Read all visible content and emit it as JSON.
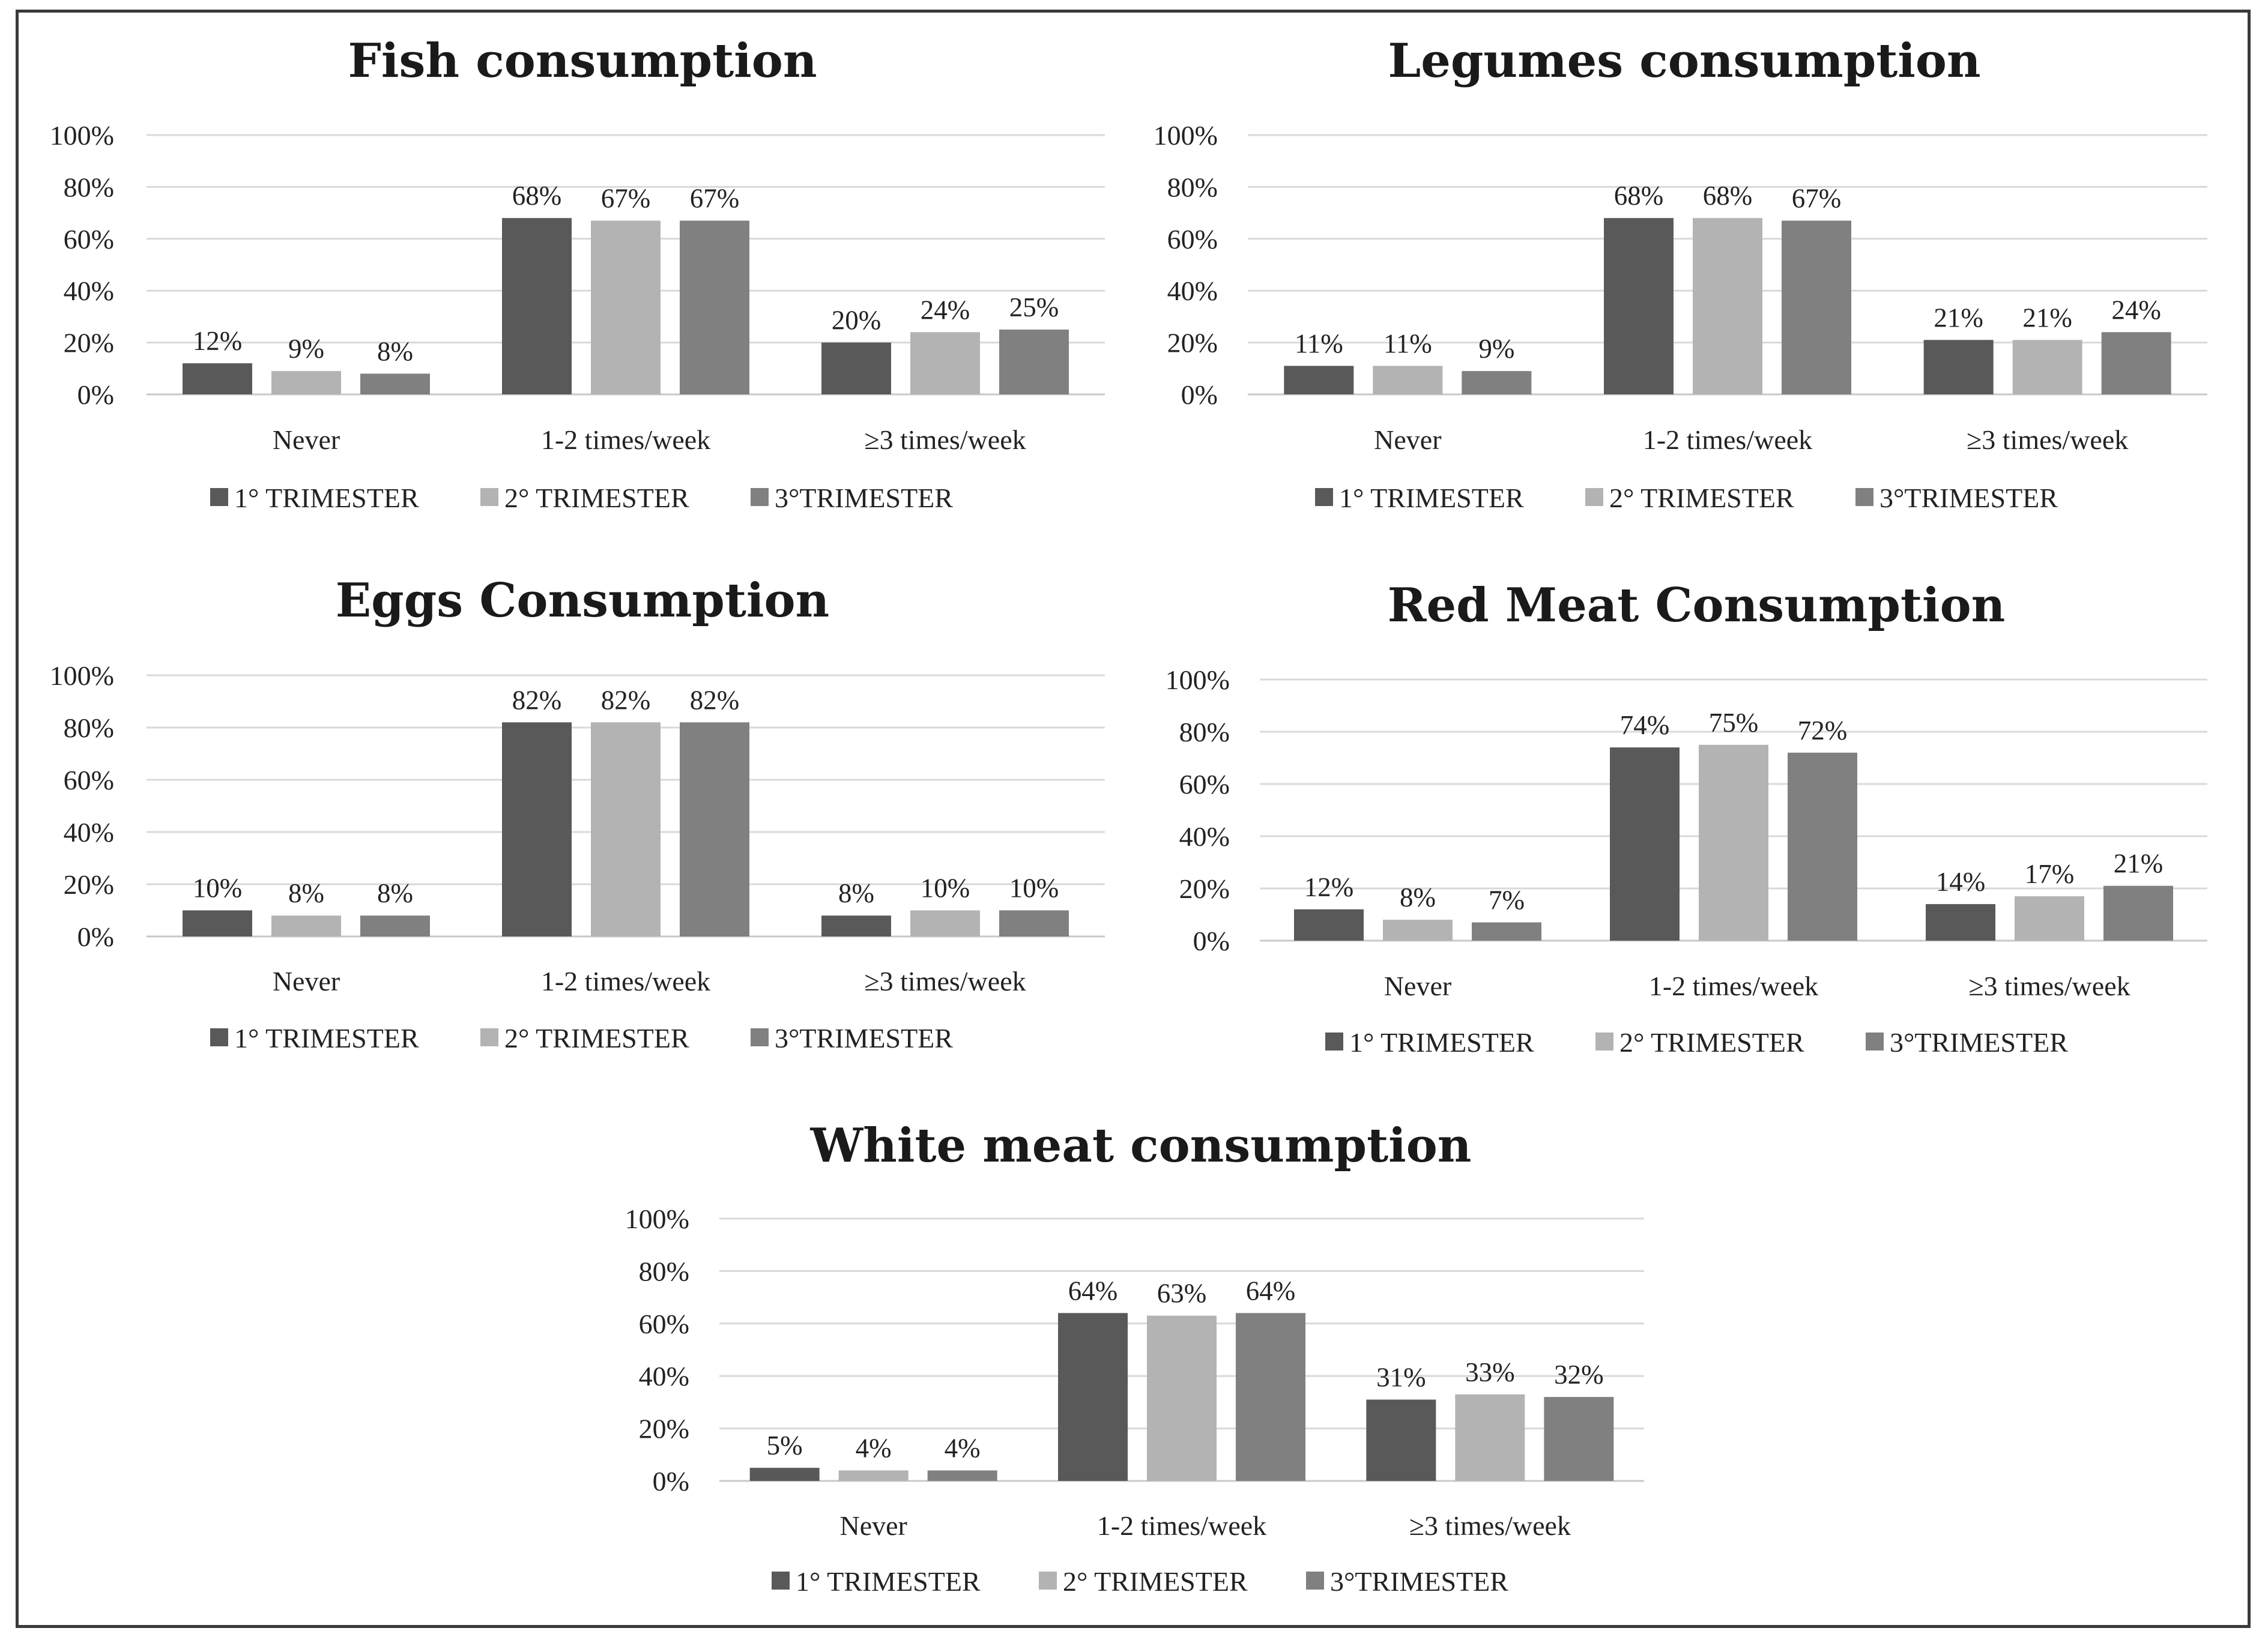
{
  "colors": {
    "series": [
      "#595959",
      "#b3b3b3",
      "#808080"
    ],
    "frame": "#3a3a3a",
    "grid": "#d9d9d9",
    "text": "#222222"
  },
  "chart_data": [
    {
      "id": "fish",
      "type": "bar",
      "title": "Fish consumption",
      "categories": [
        "Never",
        "1-2 times/week",
        "≥3 times/week"
      ],
      "series": [
        {
          "name": "1° TRIMESTER",
          "values": [
            12,
            68,
            20
          ]
        },
        {
          "name": "2° TRIMESTER",
          "values": [
            9,
            67,
            24
          ]
        },
        {
          "name": "3°TRIMESTER",
          "values": [
            8,
            67,
            25
          ]
        }
      ],
      "y_ticks": [
        "0%",
        "20%",
        "40%",
        "60%",
        "80%",
        "100%"
      ],
      "ylim": [
        0,
        100
      ],
      "value_suffix": "%",
      "grid": true,
      "legend": "bottom"
    },
    {
      "id": "legumes",
      "type": "bar",
      "title": "Legumes consumption",
      "categories": [
        "Never",
        "1-2 times/week",
        "≥3 times/week"
      ],
      "series": [
        {
          "name": "1° TRIMESTER",
          "values": [
            11,
            68,
            21
          ]
        },
        {
          "name": "2° TRIMESTER",
          "values": [
            11,
            68,
            21
          ]
        },
        {
          "name": "3°TRIMESTER",
          "values": [
            9,
            67,
            24
          ]
        }
      ],
      "y_ticks": [
        "0%",
        "20%",
        "40%",
        "60%",
        "80%",
        "100%"
      ],
      "ylim": [
        0,
        100
      ],
      "value_suffix": "%",
      "grid": true,
      "legend": "bottom"
    },
    {
      "id": "eggs",
      "type": "bar",
      "title": "Eggs Consumption",
      "categories": [
        "Never",
        "1-2 times/week",
        "≥3 times/week"
      ],
      "series": [
        {
          "name": "1° TRIMESTER",
          "values": [
            10,
            82,
            8
          ]
        },
        {
          "name": "2° TRIMESTER",
          "values": [
            8,
            82,
            10
          ]
        },
        {
          "name": "3°TRIMESTER",
          "values": [
            8,
            82,
            10
          ]
        }
      ],
      "y_ticks": [
        "0%",
        "20%",
        "40%",
        "60%",
        "80%",
        "100%"
      ],
      "ylim": [
        0,
        100
      ],
      "value_suffix": "%",
      "grid": true,
      "legend": "bottom"
    },
    {
      "id": "red-meat",
      "type": "bar",
      "title": "Red Meat Consumption",
      "categories": [
        "Never",
        "1-2 times/week",
        "≥3 times/week"
      ],
      "series": [
        {
          "name": "1° TRIMESTER",
          "values": [
            12,
            74,
            14
          ]
        },
        {
          "name": "2° TRIMESTER",
          "values": [
            8,
            75,
            17
          ]
        },
        {
          "name": "3°TRIMESTER",
          "values": [
            7,
            72,
            21
          ]
        }
      ],
      "y_ticks": [
        "0%",
        "20%",
        "40%",
        "60%",
        "80%",
        "100%"
      ],
      "ylim": [
        0,
        100
      ],
      "value_suffix": "%",
      "grid": true,
      "legend": "bottom"
    },
    {
      "id": "white-meat",
      "type": "bar",
      "title": "White meat consumption",
      "categories": [
        "Never",
        "1-2 times/week",
        "≥3 times/week"
      ],
      "series": [
        {
          "name": "1° TRIMESTER",
          "values": [
            5,
            64,
            31
          ]
        },
        {
          "name": "2° TRIMESTER",
          "values": [
            4,
            63,
            33
          ]
        },
        {
          "name": "3°TRIMESTER",
          "values": [
            4,
            64,
            32
          ]
        }
      ],
      "y_ticks": [
        "0%",
        "20%",
        "40%",
        "60%",
        "80%",
        "100%"
      ],
      "ylim": [
        0,
        100
      ],
      "value_suffix": "%",
      "grid": true,
      "legend": "bottom"
    }
  ]
}
